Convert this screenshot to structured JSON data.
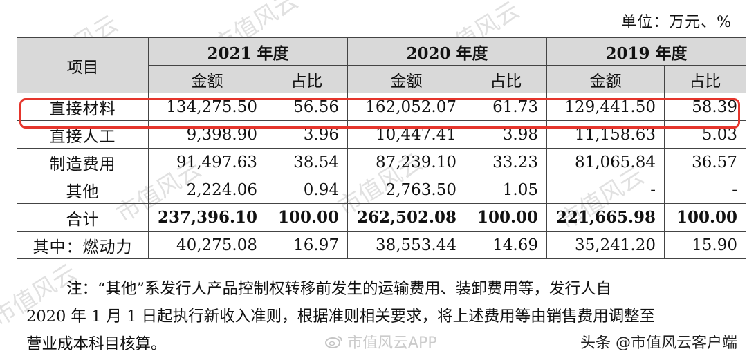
{
  "unit": "单位：万元、%",
  "table": {
    "header_item": "项目",
    "years": [
      "2021 年度",
      "2020 年度",
      "2019 年度"
    ],
    "sub_amount": "金额",
    "sub_pct": "占比",
    "rows": [
      {
        "item": "直接材料",
        "v": [
          "134,275.50",
          "56.56",
          "162,052.07",
          "61.73",
          "129,441.50",
          "58.39"
        ]
      },
      {
        "item": "直接人工",
        "v": [
          "9,398.90",
          "3.96",
          "10,447.41",
          "3.98",
          "11,158.63",
          "5.03"
        ]
      },
      {
        "item": "制造费用",
        "v": [
          "91,497.63",
          "38.54",
          "87,239.10",
          "33.23",
          "81,065.84",
          "36.57"
        ]
      },
      {
        "item": "其他",
        "v": [
          "2,224.06",
          "0.94",
          "2,763.50",
          "1.05",
          "-",
          "-"
        ]
      },
      {
        "item": "合计",
        "v": [
          "237,396.10",
          "100.00",
          "262,502.08",
          "100.00",
          "221,665.98",
          "100.00"
        ]
      },
      {
        "item": "其中：燃动力",
        "v": [
          "40,275.08",
          "16.97",
          "38,553.44",
          "14.69",
          "35,241.20",
          "15.90"
        ]
      }
    ]
  },
  "note": {
    "line1": "注：“其他”系发行人产品控制权转移前发生的运输费用、装卸费用等，发行人自",
    "line2": "2020 年 1 月 1 日起执行新收入准则，根据准则相关要求，将上述费用等由销售费用调整至",
    "line3": "营业成本科目核算。"
  },
  "watermarks": {
    "text": "市值风云",
    "app": "市值风云APP",
    "source": "头条 @市值风云客户端"
  },
  "highlight_color": "#e5352c"
}
